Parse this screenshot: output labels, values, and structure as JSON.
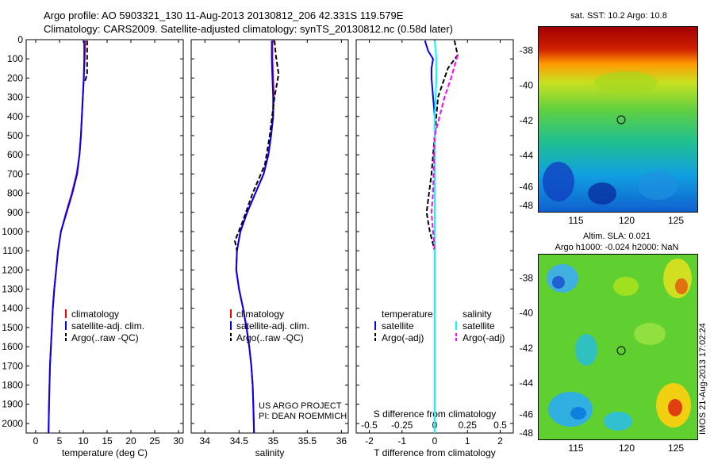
{
  "header": {
    "line1": "Argo profile: AO 5903321_130 11-Aug-2013 20130812_206 42.331S 119.579E",
    "line2": "Climatology: CARS2009. Satellite-adjusted climatology: synTS_20130812.nc (0.58d later)"
  },
  "colors": {
    "climatology": "#ff0000",
    "satellite": "#0000ff",
    "argo": "#000000",
    "salinity_satellite": "#00ffff",
    "salinity_argo": "#ff00ff"
  },
  "maps": {
    "sst": {
      "title": "sat. SST: 10.2 Argo: 10.8",
      "lat_ticks": [
        "-38",
        "-40",
        "-42",
        "-44",
        "-46",
        "-48"
      ],
      "lon_ticks": [
        "115",
        "120",
        "125"
      ]
    },
    "sla": {
      "title_line1": "Altim. SLA: 0.021",
      "title_line2": "Argo h1000: -0.024 h2000: NaN",
      "lat_ticks": [
        "-38",
        "-40",
        "-42",
        "-44",
        "-46",
        "-48"
      ],
      "lon_ticks": [
        "115",
        "120",
        "125"
      ]
    },
    "stamp": "IMOS 21-Aug-2013 17:02:24"
  },
  "annotations": {
    "project": "US ARGO PROJECT",
    "pi": "PI: DEAN ROEMMICH"
  },
  "chart_data": [
    {
      "type": "line",
      "xlabel": "temperature (deg C)",
      "ylabel": "",
      "xlim": [
        -2,
        31
      ],
      "ylim": [
        2050,
        0
      ],
      "xticks": [
        "0",
        "5",
        "10",
        "15",
        "20",
        "25",
        "30"
      ],
      "xtick_values": [
        0,
        5,
        10,
        15,
        20,
        25,
        30
      ],
      "yticks": [
        "0",
        "100",
        "200",
        "300",
        "400",
        "500",
        "600",
        "700",
        "800",
        "900",
        "1000",
        "1100",
        "1200",
        "1300",
        "1400",
        "1500",
        "1600",
        "1700",
        "1800",
        "1900",
        "2000"
      ],
      "ytick_values": [
        0,
        100,
        200,
        300,
        400,
        500,
        600,
        700,
        800,
        900,
        1000,
        1100,
        1200,
        1300,
        1400,
        1500,
        1600,
        1700,
        1800,
        1900,
        2000
      ],
      "legend": [
        "climatology",
        "satellite-adj. clim.",
        "Argo(..raw -QC)"
      ],
      "legend_position": "lower-right",
      "series": [
        {
          "name": "climatology",
          "color": "#ff0000",
          "dash": "",
          "points": [
            [
              10.4,
              5
            ],
            [
              10.3,
              100
            ],
            [
              10.1,
              200
            ],
            [
              9.9,
              300
            ],
            [
              9.7,
              400
            ],
            [
              9.5,
              500
            ],
            [
              9.2,
              600
            ],
            [
              8.6,
              700
            ],
            [
              7.6,
              800
            ],
            [
              6.4,
              900
            ],
            [
              5.3,
              1000
            ],
            [
              4.7,
              1100
            ],
            [
              4.3,
              1200
            ],
            [
              3.9,
              1300
            ],
            [
              3.6,
              1400
            ],
            [
              3.4,
              1500
            ],
            [
              3.2,
              1600
            ],
            [
              3.0,
              1700
            ],
            [
              2.9,
              1800
            ],
            [
              2.8,
              1900
            ],
            [
              2.7,
              2050
            ]
          ]
        },
        {
          "name": "satellite-adj. clim.",
          "color": "#0000ff",
          "dash": "",
          "points": [
            [
              10.2,
              5
            ],
            [
              10.2,
              100
            ],
            [
              10.1,
              200
            ],
            [
              9.9,
              300
            ],
            [
              9.7,
              400
            ],
            [
              9.5,
              500
            ],
            [
              9.2,
              600
            ],
            [
              8.7,
              700
            ],
            [
              7.7,
              800
            ],
            [
              6.5,
              900
            ],
            [
              5.3,
              1000
            ],
            [
              4.7,
              1100
            ],
            [
              4.3,
              1200
            ],
            [
              3.9,
              1300
            ],
            [
              3.6,
              1400
            ],
            [
              3.4,
              1500
            ],
            [
              3.2,
              1600
            ],
            [
              3.0,
              1700
            ],
            [
              2.9,
              1800
            ],
            [
              2.8,
              1900
            ],
            [
              2.7,
              2050
            ]
          ]
        },
        {
          "name": "Argo(..raw -QC)",
          "color": "#000000",
          "dash": "6,3",
          "points": [
            [
              10.8,
              5
            ],
            [
              10.8,
              80
            ],
            [
              10.8,
              180
            ],
            [
              10.3,
              220
            ]
          ]
        }
      ]
    },
    {
      "type": "line",
      "xlabel": "salinity",
      "ylabel": "",
      "xlim": [
        33.8,
        36.1
      ],
      "ylim": [
        2050,
        0
      ],
      "xticks": [
        "34",
        "34.5",
        "35",
        "35.5",
        "36"
      ],
      "xtick_values": [
        34,
        34.5,
        35,
        35.5,
        36
      ],
      "legend": [
        "climatology",
        "satellite-adj. clim.",
        "Argo(..raw -QC)"
      ],
      "legend_position": "lower-right",
      "series": [
        {
          "name": "climatology",
          "color": "#ff0000",
          "dash": "",
          "points": [
            [
              34.99,
              5
            ],
            [
              34.99,
              100
            ],
            [
              35.0,
              200
            ],
            [
              35.01,
              300
            ],
            [
              35.0,
              400
            ],
            [
              34.97,
              500
            ],
            [
              34.93,
              600
            ],
            [
              34.86,
              700
            ],
            [
              34.74,
              800
            ],
            [
              34.62,
              900
            ],
            [
              34.52,
              1000
            ],
            [
              34.47,
              1100
            ],
            [
              34.46,
              1200
            ],
            [
              34.5,
              1300
            ],
            [
              34.56,
              1400
            ],
            [
              34.61,
              1500
            ],
            [
              34.65,
              1600
            ],
            [
              34.68,
              1700
            ],
            [
              34.7,
              1800
            ],
            [
              34.71,
              1900
            ],
            [
              34.72,
              2050
            ]
          ]
        },
        {
          "name": "satellite-adj. clim.",
          "color": "#0000ff",
          "dash": "",
          "points": [
            [
              34.98,
              5
            ],
            [
              34.98,
              100
            ],
            [
              34.99,
              200
            ],
            [
              35.0,
              300
            ],
            [
              35.0,
              400
            ],
            [
              34.97,
              500
            ],
            [
              34.93,
              600
            ],
            [
              34.86,
              700
            ],
            [
              34.74,
              800
            ],
            [
              34.62,
              900
            ],
            [
              34.52,
              1000
            ],
            [
              34.47,
              1100
            ],
            [
              34.46,
              1200
            ],
            [
              34.5,
              1300
            ],
            [
              34.56,
              1400
            ],
            [
              34.61,
              1500
            ],
            [
              34.65,
              1600
            ],
            [
              34.68,
              1700
            ],
            [
              34.7,
              1800
            ],
            [
              34.71,
              1900
            ],
            [
              34.72,
              2050
            ]
          ]
        },
        {
          "name": "Argo(..raw -QC)",
          "color": "#000000",
          "dash": "6,3",
          "points": [
            [
              35.02,
              5
            ],
            [
              35.04,
              80
            ],
            [
              35.08,
              180
            ],
            [
              35.02,
              300
            ],
            [
              34.95,
              500
            ],
            [
              34.88,
              650
            ],
            [
              34.7,
              800
            ],
            [
              34.55,
              950
            ],
            [
              34.44,
              1050
            ],
            [
              34.47,
              1100
            ]
          ]
        }
      ]
    },
    {
      "type": "line",
      "xlabel": "T difference from climatology",
      "xlabel_top": "S difference from climatology",
      "ylabel": "",
      "xlim": [
        -2.4,
        2.4
      ],
      "ylim": [
        2050,
        0
      ],
      "xticks": [
        "-2",
        "-1",
        "0",
        "1",
        "2"
      ],
      "xtick_values": [
        -2,
        -1,
        0,
        1,
        2
      ],
      "xticks_top": [
        "-0.5",
        "-0.25",
        "0",
        "0.25",
        "0.5"
      ],
      "legend_left_title": "temperature",
      "legend_left": [
        "satellite",
        "Argo(-adj)"
      ],
      "legend_right_title": "salinity",
      "legend_right": [
        "satellite",
        "Argo(-adj)"
      ],
      "legend_position": "lower-center",
      "series": [
        {
          "name": "satellite",
          "group": "temperature",
          "color": "#0000ff",
          "dash": "",
          "points": [
            [
              -0.3,
              5
            ],
            [
              -0.2,
              60
            ],
            [
              -0.05,
              100
            ],
            [
              -0.1,
              150
            ],
            [
              -0.1,
              200
            ],
            [
              0,
              400
            ],
            [
              0,
              2050
            ]
          ]
        },
        {
          "name": "Argo(-adj)",
          "group": "temperature",
          "color": "#000000",
          "dash": "6,3",
          "points": [
            [
              0.6,
              5
            ],
            [
              0.7,
              80
            ],
            [
              0.4,
              150
            ],
            [
              0.1,
              300
            ],
            [
              0,
              500
            ],
            [
              -0.1,
              700
            ],
            [
              -0.25,
              900
            ],
            [
              -0.15,
              1000
            ],
            [
              0,
              1100
            ]
          ]
        },
        {
          "name": "satellite",
          "group": "salinity",
          "color": "#00ffff",
          "dash": "",
          "points": [
            [
              0,
              5
            ],
            [
              0.05,
              100
            ],
            [
              0.05,
              200
            ],
            [
              0,
              400
            ],
            [
              0,
              2050
            ]
          ]
        },
        {
          "name": "Argo(-adj)",
          "group": "salinity",
          "color": "#ff00ff",
          "dash": "6,3",
          "points": [
            [
              0.7,
              80
            ],
            [
              0.5,
              200
            ],
            [
              0.3,
              300
            ],
            [
              0,
              500
            ],
            [
              -0.05,
              800
            ],
            [
              -0.1,
              900
            ],
            [
              0,
              1100
            ]
          ]
        }
      ]
    }
  ]
}
